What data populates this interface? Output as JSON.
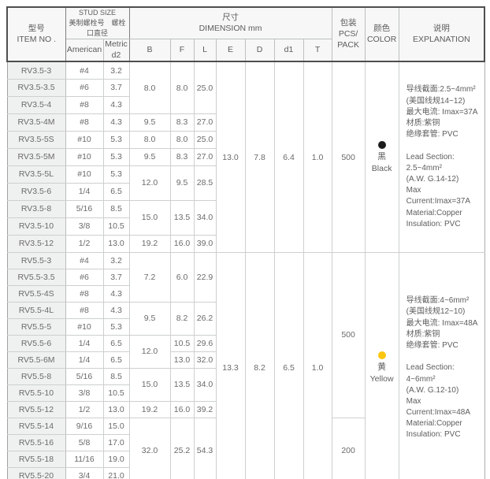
{
  "header": {
    "item": "型号\nITEM NO .",
    "stud_size": "STUD SIZE\n美制螺栓号　螺栓口直径",
    "dimension": "尺寸\nDIMENSION mm",
    "pack": "包装\nPCS/\nPACK",
    "color": "颜色\nCOLOR",
    "explanation": "说明\nEXPLANATION",
    "sub": [
      "American",
      "Metric\nd2",
      "B",
      "F",
      "L",
      "E",
      "D",
      "d1",
      "T"
    ]
  },
  "colors": {
    "black_dot": "#1c1c1c",
    "yellow_dot": "#fcc50f",
    "item_cell_bg": "#eff1f0",
    "header_bg": "#f6f7f6"
  },
  "sections": [
    {
      "name": "RV3.5",
      "shared": {
        "E": "13.0",
        "D": "7.8",
        "d1": "6.4",
        "T": "1.0",
        "pack": "500",
        "color": "黑 Black"
      },
      "rows": [
        [
          {
            "v": "RV3.5-3",
            "c": "item"
          },
          {
            "v": "#4"
          },
          {
            "v": "3.2"
          },
          {
            "v": "8.0",
            "rs": 3
          },
          {
            "v": "8.0",
            "rs": 3
          },
          {
            "v": "25.0",
            "rs": 3
          },
          {
            "v": "13.0",
            "rs": 11
          },
          {
            "v": "7.8",
            "rs": 11
          },
          {
            "v": "6.4",
            "rs": 11
          },
          {
            "v": "1.0",
            "rs": 11
          },
          {
            "v": "500",
            "rs": 11
          },
          {
            "type": "color",
            "dot": "#1c1c1c",
            "zh": "黑",
            "en": "Black",
            "rs": 11
          },
          {
            "type": "expl",
            "rs": 11,
            "v": "导线截面:2.5~4mm²\n(美国线规14~12)\n最大电流: Imax=37A\n材质:紫铜\n绝缘套管: PVC\n\nLead Section:\n2.5~4mm²\n(A.W. G.14-12)\nMax Current:Imax=37A\nMaterial:Copper\nInsulation: PVC"
          }
        ],
        [
          {
            "v": "RV3.5-3.5",
            "c": "item"
          },
          {
            "v": "#6"
          },
          {
            "v": "3.7"
          }
        ],
        [
          {
            "v": "RV3.5-4",
            "c": "item"
          },
          {
            "v": "#8"
          },
          {
            "v": "4.3"
          }
        ],
        [
          {
            "v": "RV3.5-4M",
            "c": "item"
          },
          {
            "v": "#8"
          },
          {
            "v": "4.3"
          },
          {
            "v": "9.5"
          },
          {
            "v": "8.3"
          },
          {
            "v": "27.0"
          }
        ],
        [
          {
            "v": "RV3.5-5S",
            "c": "item"
          },
          {
            "v": "#10"
          },
          {
            "v": "5.3"
          },
          {
            "v": "8.0"
          },
          {
            "v": "8.0"
          },
          {
            "v": "25.0"
          }
        ],
        [
          {
            "v": "RV3.5-5M",
            "c": "item"
          },
          {
            "v": "#10"
          },
          {
            "v": "5.3"
          },
          {
            "v": "9.5"
          },
          {
            "v": "8.3"
          },
          {
            "v": "27.0"
          }
        ],
        [
          {
            "v": "RV3.5-5L",
            "c": "item"
          },
          {
            "v": "#10"
          },
          {
            "v": "5.3"
          },
          {
            "v": "12.0",
            "rs": 2
          },
          {
            "v": "9.5",
            "rs": 2
          },
          {
            "v": "28.5",
            "rs": 2
          }
        ],
        [
          {
            "v": "RV3.5-6",
            "c": "item"
          },
          {
            "v": "1/4"
          },
          {
            "v": "6.5"
          }
        ],
        [
          {
            "v": "RV3.5-8",
            "c": "item"
          },
          {
            "v": "5/16"
          },
          {
            "v": "8.5"
          },
          {
            "v": "15.0",
            "rs": 2
          },
          {
            "v": "13.5",
            "rs": 2
          },
          {
            "v": "34.0",
            "rs": 2
          }
        ],
        [
          {
            "v": "RV3.5-10",
            "c": "item"
          },
          {
            "v": "3/8"
          },
          {
            "v": "10.5"
          }
        ],
        [
          {
            "v": "RV3.5-12",
            "c": "item"
          },
          {
            "v": "1/2"
          },
          {
            "v": "13.0"
          },
          {
            "v": "19.2"
          },
          {
            "v": "16.0"
          },
          {
            "v": "39.0"
          }
        ]
      ]
    },
    {
      "name": "RV5.5",
      "shared": {
        "E": "13.3",
        "D": "8.2",
        "d1": "6.5",
        "T": "1.0",
        "pack": "500 / 200",
        "color": "黄 Yellow"
      },
      "rows": [
        [
          {
            "v": "RV5.5-3",
            "c": "item"
          },
          {
            "v": "#4"
          },
          {
            "v": "3.2"
          },
          {
            "v": "7.2",
            "rs": 3
          },
          {
            "v": "6.0",
            "rs": 3
          },
          {
            "v": "22.9",
            "rs": 3
          },
          {
            "v": "13.3",
            "rs": 14
          },
          {
            "v": "8.2",
            "rs": 14
          },
          {
            "v": "6.5",
            "rs": 14
          },
          {
            "v": "1.0",
            "rs": 14
          },
          {
            "v": "500",
            "rs": 10
          },
          {
            "type": "color",
            "dot": "#fcc50f",
            "zh": "黄",
            "en": "Yellow",
            "rs": 14
          },
          {
            "type": "expl",
            "rs": 14,
            "v": "导线截面:4~6mm²\n(美国线规12~10)\n最大电流: Imax=48A\n材质:紫铜\n绝缘套管: PVC\n\nLead Section:\n4~6mm²\n(A.W. G.12-10)\nMax Current:Imax=48A\nMaterial:Copper\nInsulation: PVC"
          }
        ],
        [
          {
            "v": "RV5.5-3.5",
            "c": "item"
          },
          {
            "v": "#6"
          },
          {
            "v": "3.7"
          }
        ],
        [
          {
            "v": "RV5.5-4S",
            "c": "item"
          },
          {
            "v": "#8"
          },
          {
            "v": "4.3"
          }
        ],
        [
          {
            "v": "RV5.5-4L",
            "c": "item"
          },
          {
            "v": "#8"
          },
          {
            "v": "4.3"
          },
          {
            "v": "9.5",
            "rs": 2
          },
          {
            "v": "8.2",
            "rs": 2
          },
          {
            "v": "26.2",
            "rs": 2
          }
        ],
        [
          {
            "v": "RV5.5-5",
            "c": "item"
          },
          {
            "v": "#10"
          },
          {
            "v": "5.3"
          }
        ],
        [
          {
            "v": "RV5.5-6",
            "c": "item"
          },
          {
            "v": "1/4"
          },
          {
            "v": "6.5"
          },
          {
            "v": "12.0",
            "rs": 2
          },
          {
            "v": "10.5"
          },
          {
            "v": "29.6"
          }
        ],
        [
          {
            "v": "RV5.5-6M",
            "c": "item"
          },
          {
            "v": "1/4"
          },
          {
            "v": "6.5"
          },
          {
            "v": "13.0"
          },
          {
            "v": "32.0"
          }
        ],
        [
          {
            "v": "RV5.5-8",
            "c": "item"
          },
          {
            "v": "5/16"
          },
          {
            "v": "8.5"
          },
          {
            "v": "15.0",
            "rs": 2
          },
          {
            "v": "13.5",
            "rs": 2
          },
          {
            "v": "34.0",
            "rs": 2
          }
        ],
        [
          {
            "v": "RV5.5-10",
            "c": "item"
          },
          {
            "v": "3/8"
          },
          {
            "v": "10.5"
          }
        ],
        [
          {
            "v": "RV5.5-12",
            "c": "item"
          },
          {
            "v": "1/2"
          },
          {
            "v": "13.0"
          },
          {
            "v": "19.2"
          },
          {
            "v": "16.0"
          },
          {
            "v": "39.2"
          }
        ],
        [
          {
            "v": "RV5.5-14",
            "c": "item"
          },
          {
            "v": "9/16"
          },
          {
            "v": "15.0"
          },
          {
            "v": "32.0",
            "rs": 4
          },
          {
            "v": "25.2",
            "rs": 4
          },
          {
            "v": "54.3",
            "rs": 4
          },
          {
            "v": "200",
            "rs": 4
          }
        ],
        [
          {
            "v": "RV5.5-16",
            "c": "item"
          },
          {
            "v": "5/8"
          },
          {
            "v": "17.0"
          }
        ],
        [
          {
            "v": "RV5.5-18",
            "c": "item"
          },
          {
            "v": "11/16"
          },
          {
            "v": "19.0"
          }
        ],
        [
          {
            "v": "RV5.5-20",
            "c": "item"
          },
          {
            "v": "3/4"
          },
          {
            "v": "21.0"
          }
        ]
      ]
    }
  ]
}
